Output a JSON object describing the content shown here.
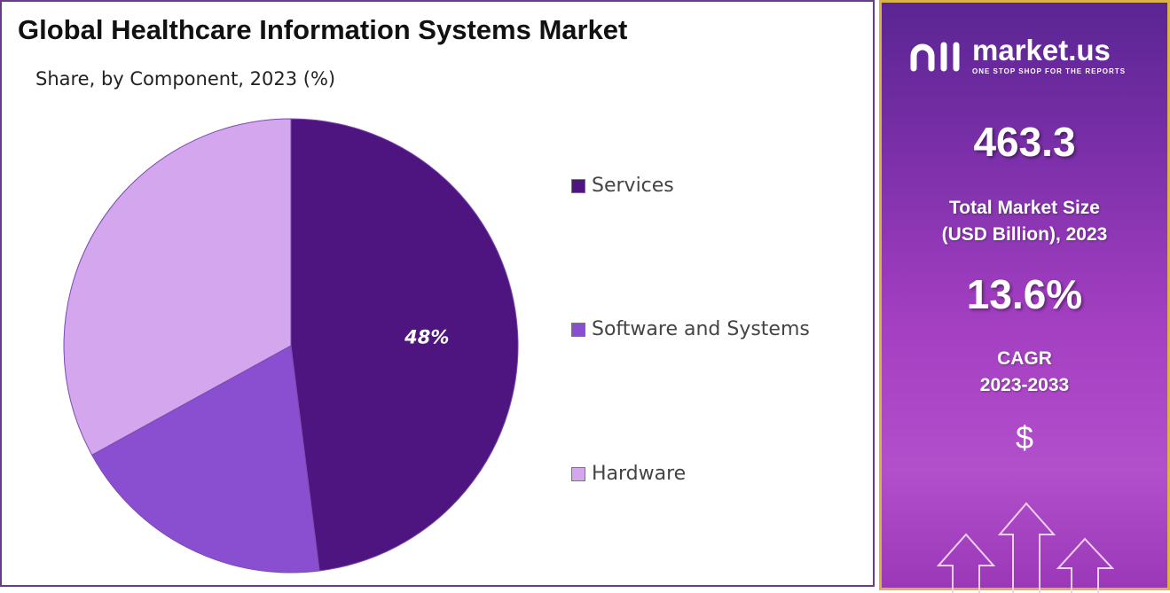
{
  "chart_data": {
    "type": "pie",
    "title": "Global Healthcare Information Systems Market",
    "subtitle": "Share, by Component, 2023 (%)",
    "categories": [
      "Services",
      "Software and Systems",
      "Hardware"
    ],
    "values": [
      48,
      19,
      33
    ],
    "colors": [
      "#4e1580",
      "#8a4fd0",
      "#d3a6ee"
    ],
    "data_labels": [
      "48%",
      "",
      ""
    ],
    "legend_placement": "right"
  },
  "sidebar": {
    "brand": "market.us",
    "tagline": "ONE STOP SHOP FOR THE REPORTS",
    "market_size": "463.3",
    "market_size_label_1": "Total Market Size",
    "market_size_label_2": "(USD Billion), 2023",
    "cagr": "13.6%",
    "cagr_label_1": "CAGR",
    "cagr_label_2": "2023-2033",
    "dollar_symbol": "$",
    "icons": [
      "market-us-logo-icon",
      "dollar-icon",
      "up-arrows-icon"
    ]
  }
}
